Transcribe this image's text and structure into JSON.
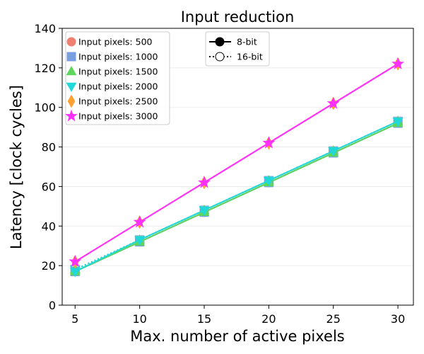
{
  "chart_data": {
    "type": "line",
    "title": "Input reduction",
    "xlabel": "Max. number of active pixels",
    "ylabel": "Latency [clock cycles]",
    "x": [
      5,
      10,
      15,
      20,
      25,
      30
    ],
    "xlim": [
      4,
      31.2
    ],
    "ylim": [
      0,
      140
    ],
    "xticks": [
      5,
      10,
      15,
      20,
      25,
      30
    ],
    "yticks": [
      0,
      20,
      40,
      60,
      80,
      100,
      120,
      140
    ],
    "grid": "horizontal",
    "series": [
      {
        "name": "Input pixels: 500",
        "bit": "8-bit",
        "marker": "circle",
        "color": "#f08070",
        "values": [
          17,
          32,
          47,
          62,
          77,
          92
        ]
      },
      {
        "name": "Input pixels: 500",
        "bit": "16-bit",
        "marker": "circle",
        "color": "#f08070",
        "values": [
          17,
          32,
          47,
          62,
          77,
          92
        ]
      },
      {
        "name": "Input pixels: 1000",
        "bit": "8-bit",
        "marker": "square",
        "color": "#7a9fe0",
        "values": [
          17,
          32,
          47,
          62,
          77,
          92
        ]
      },
      {
        "name": "Input pixels: 1000",
        "bit": "16-bit",
        "marker": "square",
        "color": "#7a9fe0",
        "values": [
          18,
          33,
          48,
          63,
          78,
          93
        ]
      },
      {
        "name": "Input pixels: 1500",
        "bit": "8-bit",
        "marker": "triangle-up",
        "color": "#5cd65c",
        "values": [
          17,
          32,
          47,
          62,
          77,
          92
        ]
      },
      {
        "name": "Input pixels: 1500",
        "bit": "16-bit",
        "marker": "triangle-up",
        "color": "#5cd65c",
        "values": [
          18,
          33,
          48,
          63,
          78,
          93
        ]
      },
      {
        "name": "Input pixels: 2000",
        "bit": "8-bit",
        "marker": "triangle-down",
        "color": "#20d8d8",
        "values": [
          17,
          33,
          48,
          63,
          78,
          93
        ]
      },
      {
        "name": "Input pixels: 2000",
        "bit": "16-bit",
        "marker": "triangle-down",
        "color": "#20d8d8",
        "values": [
          18,
          33,
          48,
          63,
          78,
          93
        ]
      },
      {
        "name": "Input pixels: 2500",
        "bit": "8-bit",
        "marker": "diamond",
        "color": "#ffa030",
        "values": [
          22,
          42,
          62,
          82,
          102,
          122
        ]
      },
      {
        "name": "Input pixels: 2500",
        "bit": "16-bit",
        "marker": "diamond",
        "color": "#ffa030",
        "values": [
          22,
          42,
          62,
          82,
          102,
          122
        ]
      },
      {
        "name": "Input pixels: 3000",
        "bit": "8-bit",
        "marker": "star",
        "color": "#ff30ff",
        "values": [
          22,
          42,
          62,
          82,
          102,
          122
        ]
      },
      {
        "name": "Input pixels: 3000",
        "bit": "16-bit",
        "marker": "star",
        "color": "#ff30ff",
        "values": [
          22,
          42,
          62,
          82,
          102,
          122
        ]
      }
    ],
    "legend_pixels": {
      "placement": "top-left",
      "entries": [
        {
          "label": "Input pixels: 500",
          "marker": "circle",
          "color": "#f08070"
        },
        {
          "label": "Input pixels: 1000",
          "marker": "square",
          "color": "#7a9fe0"
        },
        {
          "label": "Input pixels: 1500",
          "marker": "triangle-up",
          "color": "#5cd65c"
        },
        {
          "label": "Input pixels: 2000",
          "marker": "triangle-down",
          "color": "#20d8d8"
        },
        {
          "label": "Input pixels: 2500",
          "marker": "diamond",
          "color": "#ffa030"
        },
        {
          "label": "Input pixels: 3000",
          "marker": "star",
          "color": "#ff30ff"
        }
      ]
    },
    "legend_bits": {
      "placement": "top-center",
      "entries": [
        {
          "label": "8-bit",
          "style": "solid",
          "marker_fill": "filled"
        },
        {
          "label": "16-bit",
          "style": "dotted",
          "marker_fill": "hollow"
        }
      ]
    }
  }
}
